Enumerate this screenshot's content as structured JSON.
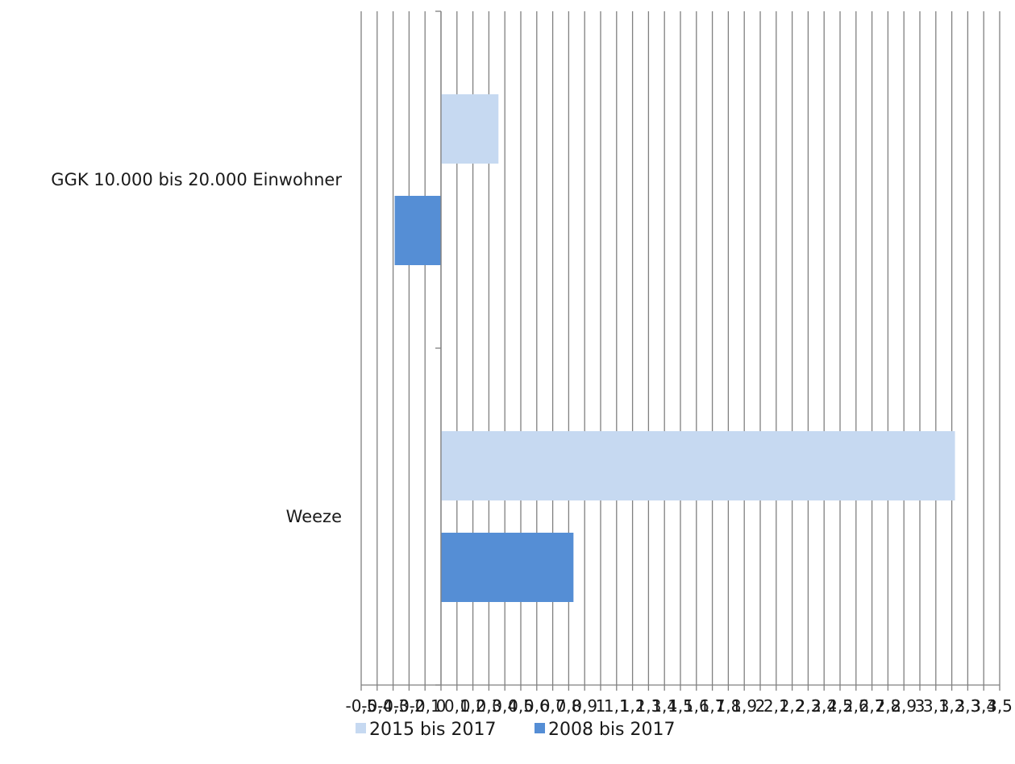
{
  "chart_data": {
    "type": "bar",
    "orientation": "horizontal",
    "categories": [
      "GGK 10.000 bis 20.000 Einwohner",
      "Weeze"
    ],
    "series": [
      {
        "name": "2015 bis 2017",
        "values": [
          0.36,
          3.22
        ],
        "color": "#c6d9f1"
      },
      {
        "name": "2008 bis 2017",
        "values": [
          -0.29,
          0.83
        ],
        "color": "#558ed5"
      }
    ],
    "xlim": [
      -0.5,
      3.5
    ],
    "xtick_step": 0.1,
    "xtick_labels": [
      "-0,5",
      "-0,4",
      "-0,3",
      "-0,2",
      "-0,1",
      "0",
      "0,1",
      "0,2",
      "0,3",
      "0,4",
      "0,5",
      "0,6",
      "0,7",
      "0,8",
      "0,9",
      "1",
      "1,1",
      "1,2",
      "1,3",
      "1,4",
      "1,5",
      "1,6",
      "1,7",
      "1,8",
      "1,9",
      "2",
      "2,1",
      "2,2",
      "2,3",
      "2,4",
      "2,5",
      "2,6",
      "2,7",
      "2,8",
      "2,9",
      "3",
      "3,1",
      "3,2",
      "3,3",
      "3,4",
      "3,5"
    ],
    "grid": true,
    "legend_position": "bottom",
    "title": "",
    "xlabel": "",
    "ylabel": "",
    "colors": {
      "grid": "#808080",
      "axis": "#808080",
      "text": "#1a1a1a"
    }
  }
}
